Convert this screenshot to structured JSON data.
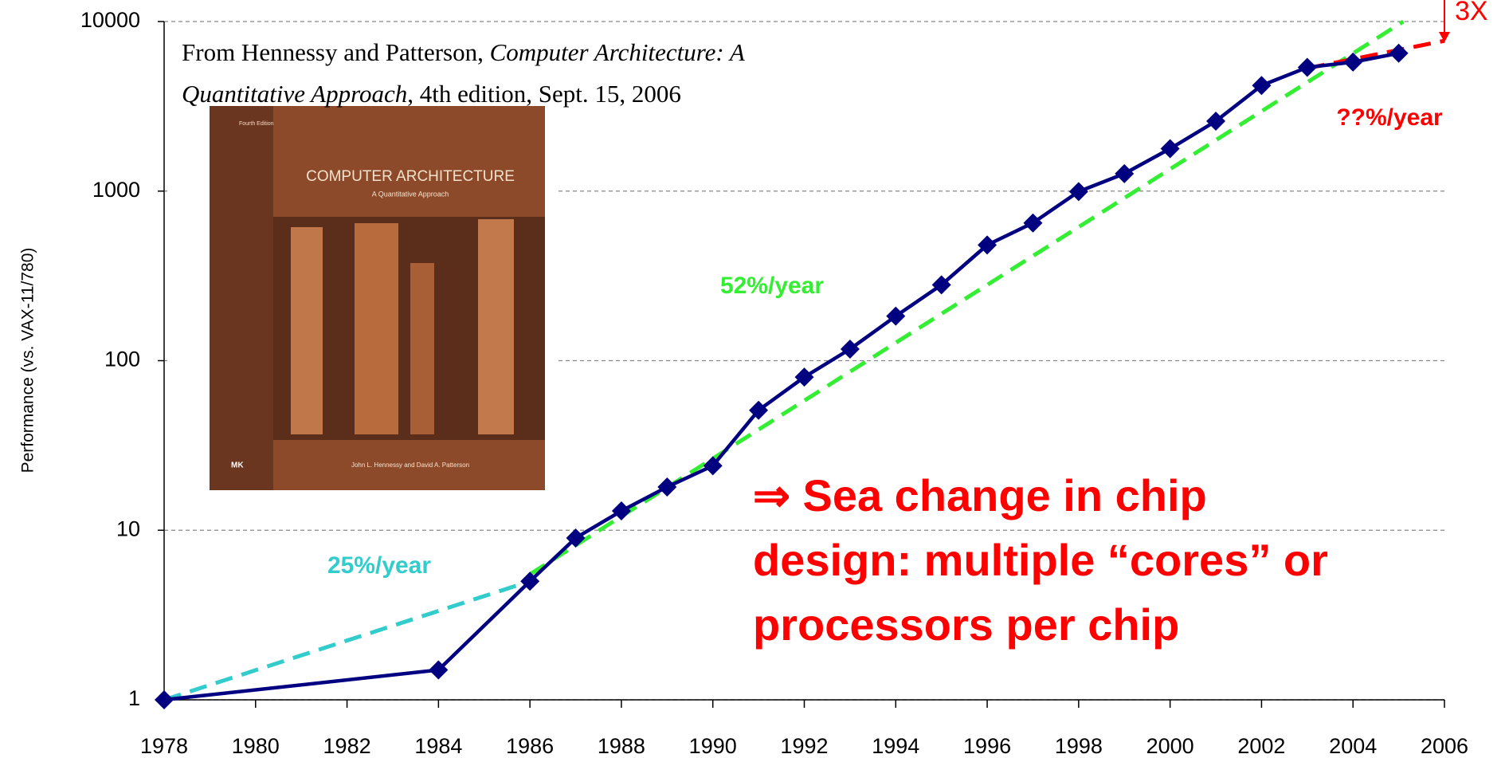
{
  "chart_data": {
    "type": "line",
    "y_label": "Performance (vs. VAX-11/780)",
    "x": [
      1978,
      1984,
      1986,
      1987,
      1988,
      1989,
      1990,
      1991,
      1992,
      1993,
      1994,
      1995,
      1996,
      1997,
      1998,
      1999,
      2000,
      2001,
      2002,
      2003,
      2004,
      2005
    ],
    "series": [
      {
        "color": "#000080",
        "values": [
          1,
          1.5,
          5,
          9,
          13,
          18,
          24,
          51,
          80,
          117,
          183,
          280,
          481,
          649,
          993,
          1267,
          1779,
          2584,
          4195,
          5364,
          5764,
          6505
        ]
      }
    ],
    "xlim": [
      1978,
      2006
    ],
    "xticks": [
      1978,
      1980,
      1982,
      1984,
      1986,
      1988,
      1990,
      1992,
      1994,
      1996,
      1998,
      2000,
      2002,
      2004,
      2006
    ],
    "ylim": [
      1,
      10000
    ],
    "yticks": [
      1,
      10,
      100,
      1000,
      10000
    ],
    "log_y": true,
    "grid": true,
    "trend_lines": [
      {
        "label": "25%/year",
        "color": "#33cccc",
        "x": [
          1978,
          1986
        ],
        "values": [
          1,
          5
        ]
      },
      {
        "label": "52%/year",
        "color": "#33ee33",
        "x": [
          1986,
          2005.1
        ],
        "values": [
          5.5,
          10000
        ]
      },
      {
        "label": "??%/year",
        "color": "#ff0000",
        "x": [
          2003,
          2006
        ],
        "values": [
          5300,
          7700
        ]
      }
    ],
    "arrow_label": "3X",
    "source_parts": [
      "From Hennessy and Patterson, ",
      "Computer Architecture: A",
      "Quantitative Approach",
      ", 4th edition, Sept. 15, 2006"
    ],
    "note_lines": [
      "⇒ Sea change in chip",
      "design: multiple “cores” or",
      "processors per chip"
    ],
    "book_cover": {
      "edition": "Fourth Edition",
      "title": "COMPUTER ARCHITECTURE",
      "subtitle": "A Quantitative Approach",
      "publisher": "MK",
      "authors": "John L. Hennessy and David A. Patterson"
    }
  }
}
